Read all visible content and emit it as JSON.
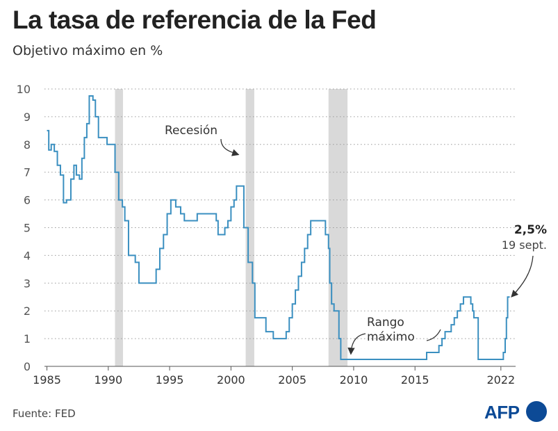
{
  "header": {
    "title": "La tasa de referencia de la Fed",
    "subtitle": "Objetivo máximo en %"
  },
  "footer": {
    "source": "Fuente: FED",
    "logo_text": "AFP"
  },
  "colors": {
    "line": "#3a8fc0",
    "recession": "#d9d9d9",
    "grid": "#9a9a9a",
    "text": "#333333",
    "logo": "#0c4a96"
  },
  "chart_data": {
    "type": "line",
    "step": true,
    "xlim": [
      1984.8,
      2023.2
    ],
    "ylim": [
      0,
      10
    ],
    "x_ticks": [
      1985,
      1990,
      1995,
      2000,
      2005,
      2010,
      2015,
      2022
    ],
    "y_ticks": [
      0,
      1,
      2,
      3,
      4,
      5,
      6,
      7,
      8,
      9,
      10
    ],
    "grid": "horizontal dotted",
    "recessions": [
      [
        1990.55,
        1991.2
      ],
      [
        2001.2,
        2001.9
      ],
      [
        2007.95,
        2009.5
      ]
    ],
    "annotations": [
      {
        "text": "Recesión",
        "position": "above 2001 recession"
      },
      {
        "text": "Rango máximo",
        "position": "near 2010 zero bound"
      },
      {
        "text": "2,5%",
        "bold": true,
        "position": "end of line"
      },
      {
        "text": "19 sept.",
        "position": "end of line"
      }
    ],
    "series": [
      {
        "points": [
          [
            1985.0,
            8.5
          ],
          [
            1985.15,
            7.8
          ],
          [
            1985.35,
            8.0
          ],
          [
            1985.6,
            7.75
          ],
          [
            1985.85,
            7.25
          ],
          [
            1986.1,
            6.9
          ],
          [
            1986.35,
            5.9
          ],
          [
            1986.6,
            6.0
          ],
          [
            1986.95,
            6.75
          ],
          [
            1987.2,
            7.25
          ],
          [
            1987.4,
            6.9
          ],
          [
            1987.65,
            6.75
          ],
          [
            1987.85,
            7.5
          ],
          [
            1988.05,
            8.25
          ],
          [
            1988.25,
            8.75
          ],
          [
            1988.45,
            9.75
          ],
          [
            1988.75,
            9.6
          ],
          [
            1988.95,
            9.0
          ],
          [
            1989.2,
            8.25
          ],
          [
            1989.9,
            8.0
          ],
          [
            1990.55,
            7.0
          ],
          [
            1990.85,
            6.0
          ],
          [
            1991.15,
            5.75
          ],
          [
            1991.35,
            5.25
          ],
          [
            1991.65,
            4.0
          ],
          [
            1992.2,
            3.75
          ],
          [
            1992.5,
            3.0
          ],
          [
            1993.9,
            3.5
          ],
          [
            1994.2,
            4.25
          ],
          [
            1994.5,
            4.75
          ],
          [
            1994.8,
            5.5
          ],
          [
            1995.1,
            6.0
          ],
          [
            1995.5,
            5.75
          ],
          [
            1995.9,
            5.5
          ],
          [
            1996.2,
            5.25
          ],
          [
            1997.25,
            5.5
          ],
          [
            1998.8,
            5.25
          ],
          [
            1998.95,
            4.75
          ],
          [
            1999.5,
            5.0
          ],
          [
            1999.75,
            5.25
          ],
          [
            2000.0,
            5.75
          ],
          [
            2000.25,
            6.0
          ],
          [
            2000.45,
            6.5
          ],
          [
            2001.05,
            5.0
          ],
          [
            2001.4,
            3.75
          ],
          [
            2001.75,
            3.0
          ],
          [
            2001.95,
            1.75
          ],
          [
            2002.85,
            1.25
          ],
          [
            2003.45,
            1.0
          ],
          [
            2004.5,
            1.25
          ],
          [
            2004.75,
            1.75
          ],
          [
            2005.0,
            2.25
          ],
          [
            2005.25,
            2.75
          ],
          [
            2005.5,
            3.25
          ],
          [
            2005.75,
            3.75
          ],
          [
            2006.0,
            4.25
          ],
          [
            2006.25,
            4.75
          ],
          [
            2006.5,
            5.25
          ],
          [
            2007.7,
            4.75
          ],
          [
            2007.95,
            4.25
          ],
          [
            2008.05,
            3.0
          ],
          [
            2008.2,
            2.25
          ],
          [
            2008.4,
            2.0
          ],
          [
            2008.8,
            1.0
          ],
          [
            2008.95,
            0.25
          ],
          [
            2015.95,
            0.5
          ],
          [
            2016.95,
            0.75
          ],
          [
            2017.2,
            1.0
          ],
          [
            2017.45,
            1.25
          ],
          [
            2017.95,
            1.5
          ],
          [
            2018.2,
            1.75
          ],
          [
            2018.45,
            2.0
          ],
          [
            2018.7,
            2.25
          ],
          [
            2018.95,
            2.5
          ],
          [
            2019.55,
            2.25
          ],
          [
            2019.7,
            2.0
          ],
          [
            2019.8,
            1.75
          ],
          [
            2020.15,
            0.25
          ],
          [
            2022.2,
            0.5
          ],
          [
            2022.35,
            1.0
          ],
          [
            2022.45,
            1.75
          ],
          [
            2022.55,
            2.5
          ],
          [
            2022.72,
            2.5
          ]
        ]
      }
    ]
  }
}
